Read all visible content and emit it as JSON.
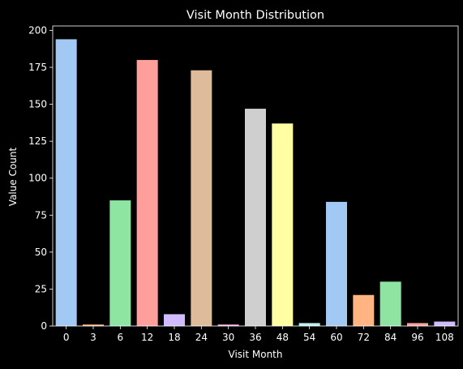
{
  "chart_data": {
    "type": "bar",
    "title": "Visit Month Distribution",
    "xlabel": "Visit Month",
    "ylabel": "Value Count",
    "categories": [
      "0",
      "3",
      "6",
      "12",
      "18",
      "24",
      "30",
      "36",
      "48",
      "54",
      "60",
      "72",
      "84",
      "96",
      "108"
    ],
    "values": [
      194,
      1,
      85,
      180,
      8,
      173,
      1,
      147,
      137,
      2,
      84,
      21,
      30,
      2,
      3
    ],
    "ylim": [
      0,
      203
    ],
    "yticks": [
      0,
      25,
      50,
      75,
      100,
      125,
      150,
      175,
      200
    ],
    "grid": false,
    "legend": "none",
    "colors": [
      "#a1c9f4",
      "#ffb482",
      "#8de5a1",
      "#ff9f9b",
      "#d0bbff",
      "#debb9b",
      "#fab0e4",
      "#cfcfcf",
      "#fffea3",
      "#b9f2f0"
    ],
    "background": "#000000",
    "foreground": "#ffffff"
  }
}
